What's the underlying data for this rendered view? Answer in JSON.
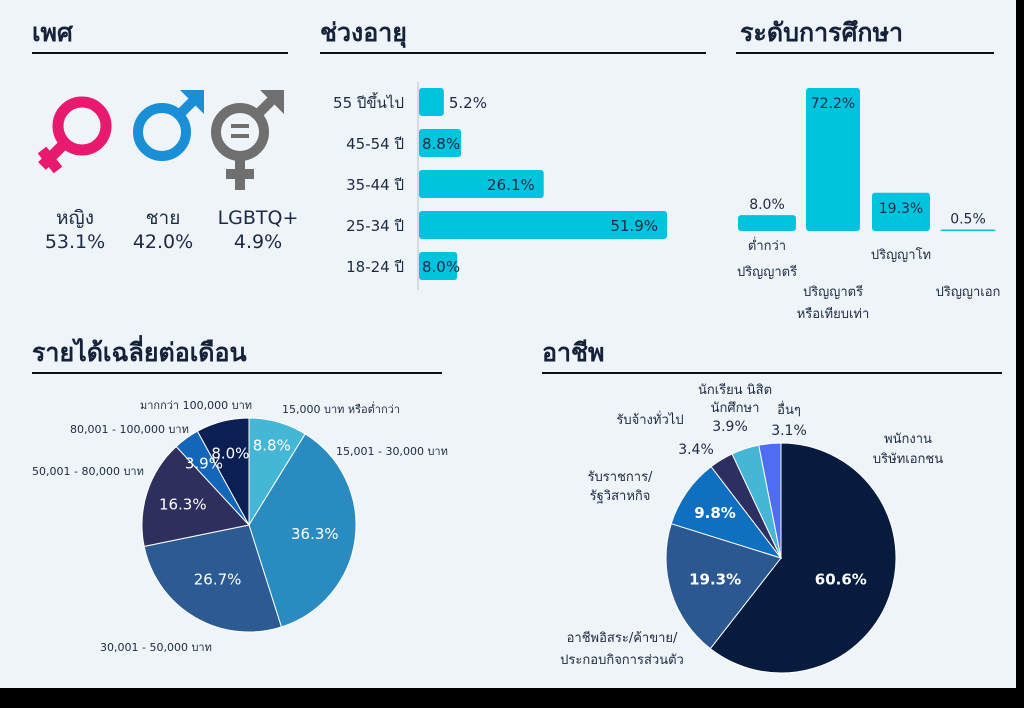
{
  "gender": {
    "title": "เพศ",
    "items": [
      {
        "label": "หญิง",
        "value": "53.1%",
        "icon": "female-symbol-icon",
        "color": "#e8196f"
      },
      {
        "label": "ชาย",
        "value": "42.0%",
        "icon": "male-symbol-icon",
        "color": "#1a8fd8"
      },
      {
        "label": "LGBTQ+",
        "value": "4.9%",
        "icon": "lgbtq-symbol-icon",
        "color": "#6f6f6f"
      }
    ]
  },
  "age": {
    "title": "ช่วงอายุ",
    "chart_data": {
      "type": "bar",
      "orientation": "horizontal",
      "categories": [
        "55 ปีขึ้นไป",
        "45-54 ปี",
        "35-44 ปี",
        "25-34 ปี",
        "18-24 ปี"
      ],
      "values": [
        5.2,
        8.8,
        26.1,
        51.9,
        8.0
      ],
      "labels": [
        "5.2%",
        "8.8%",
        "26.1%",
        "51.9%",
        "8.0%"
      ],
      "color": "#00c4de"
    }
  },
  "education": {
    "title": "ระดับการศึกษา",
    "chart_data": {
      "type": "bar",
      "categories": [
        "ต่ำกว่า ปริญญาตรี",
        "ปริญญาตรี หรือเทียบเท่า",
        "ปริญญาโท",
        "ปริญญาเอก"
      ],
      "category_lines": [
        [
          "ต่ำกว่า",
          "ปริญญาตรี"
        ],
        [
          "ปริญญาตรี",
          "หรือเทียบเท่า"
        ],
        [
          "ปริญญาโท"
        ],
        [
          "ปริญญาเอก"
        ]
      ],
      "values": [
        8.0,
        72.2,
        19.3,
        0.5
      ],
      "labels": [
        "8.0%",
        "72.2%",
        "19.3%",
        "0.5%"
      ],
      "color": "#00c4de"
    }
  },
  "income": {
    "title": "รายได้เฉลี่ยต่อเดือน",
    "chart_data": {
      "type": "pie",
      "slices": [
        {
          "label": "15,000 บาท หรือต่ำกว่า",
          "value": 8.8,
          "text": "8.8%",
          "color": "#44b7d6"
        },
        {
          "label": "15,001 - 30,000 บาท",
          "value": 36.3,
          "text": "36.3%",
          "color": "#2a8bc0"
        },
        {
          "label": "30,001 - 50,000 บาท",
          "value": 26.7,
          "text": "26.7%",
          "color": "#2b5b92"
        },
        {
          "label": "50,001 - 80,000 บาท",
          "value": 16.3,
          "text": "16.3%",
          "color": "#2e2f5e"
        },
        {
          "label": "80,001 - 100,000 บาท",
          "value": 3.9,
          "text": "3.9%",
          "color": "#1467b8"
        },
        {
          "label": "มากกว่า 100,000 บาท",
          "value": 8.0,
          "text": "8.0%",
          "color": "#0b1f55"
        }
      ]
    }
  },
  "occupation": {
    "title": "อาชีพ",
    "chart_data": {
      "type": "pie",
      "slices": [
        {
          "label": "พนักงาน บริษัทเอกชน",
          "lines": [
            "พนักงาน",
            "บริษัทเอกชน"
          ],
          "value": 60.6,
          "text": "60.6%",
          "color": "#071b3e"
        },
        {
          "label": "อาชีพอิสระ/ค้าขาย/ ประกอบกิจการส่วนตัว",
          "lines": [
            "อาชีพอิสระ/ค้าขาย/",
            "ประกอบกิจการส่วนตัว"
          ],
          "value": 19.3,
          "text": "19.3%",
          "color": "#2c5891"
        },
        {
          "label": "รับราชการ/ รัฐวิสาหกิจ",
          "lines": [
            "รับราชการ/",
            "รัฐวิสาหกิจ"
          ],
          "value": 9.8,
          "text": "9.8%",
          "color": "#0f6fc0"
        },
        {
          "label": "รับจ้างทั่วไป",
          "lines": [
            "รับจ้างทั่วไป"
          ],
          "value": 3.4,
          "text": "3.4%",
          "color": "#2d2f63"
        },
        {
          "label": "นักเรียน นิสิต นักศึกษา",
          "lines": [
            "นักเรียน นิสิต",
            "นักศึกษา"
          ],
          "value": 3.9,
          "text": "3.9%",
          "color": "#45b6d5"
        },
        {
          "label": "อื่นๆ",
          "lines": [
            "อื่นๆ"
          ],
          "value": 3.1,
          "text": "3.1%",
          "color": "#4f6df0"
        }
      ]
    }
  }
}
